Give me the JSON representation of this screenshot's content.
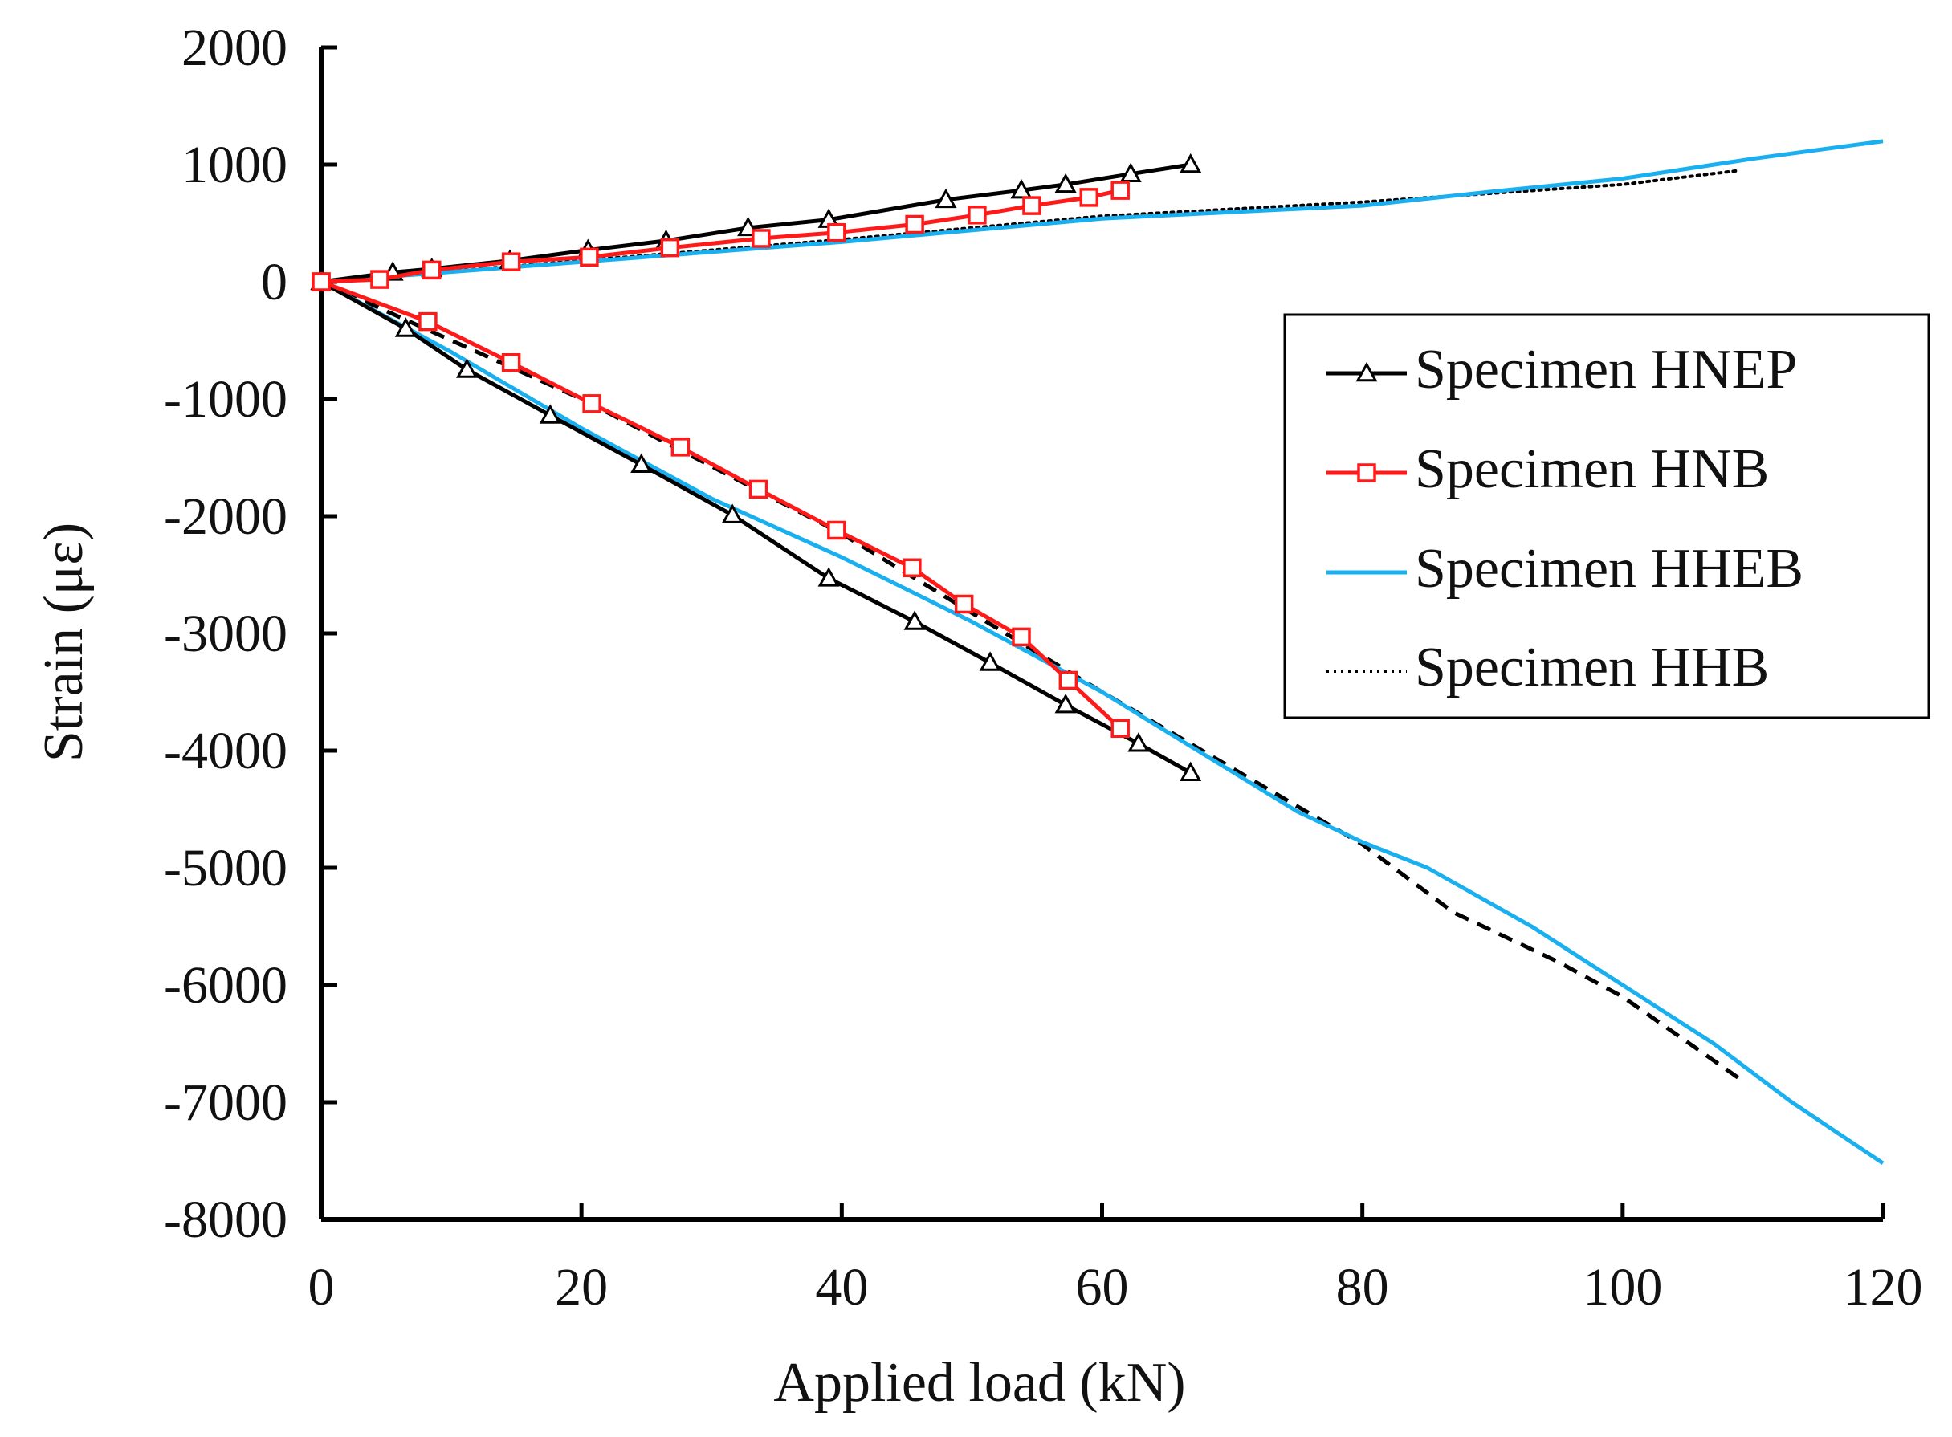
{
  "chart_data": {
    "type": "line",
    "title": "",
    "xlabel": "Applied load (kN)",
    "ylabel": "Strain (με)",
    "xlim": [
      0,
      120
    ],
    "ylim": [
      -8000,
      2000
    ],
    "xticks": [
      "0",
      "20",
      "40",
      "60",
      "80",
      "100",
      "120"
    ],
    "yticks": [
      "2000",
      "1000",
      "0",
      "-1000",
      "-2000",
      "-3000",
      "-4000",
      "-5000",
      "-6000",
      "-7000",
      "-8000"
    ],
    "xtick_values": [
      0,
      20,
      40,
      60,
      80,
      100,
      120
    ],
    "ytick_values": [
      2000,
      1000,
      0,
      -1000,
      -2000,
      -3000,
      -4000,
      -5000,
      -6000,
      -7000,
      -8000
    ],
    "grid": false,
    "legend_position": "right",
    "series": [
      {
        "name": "Specimen HNEP",
        "color": "#000000",
        "style": "solid",
        "marker": "triangle",
        "branches": [
          {
            "x": [
              0,
              5.5,
              8.5,
              14.5,
              20.5,
              26.5,
              32.8,
              39,
              48,
              53.8,
              57.2,
              62.2,
              66.8
            ],
            "y": [
              0,
              80,
              110,
              180,
              270,
              350,
              460,
              530,
              700,
              780,
              830,
              920,
              1000
            ]
          },
          {
            "x": [
              0,
              6.5,
              11.2,
              17.6,
              24.6,
              31.6,
              39,
              45.6,
              51.4,
              57.2,
              62.8,
              66.8
            ],
            "y": [
              0,
              -400,
              -750,
              -1140,
              -1560,
              -1990,
              -2530,
              -2900,
              -3250,
              -3610,
              -3940,
              -4190
            ]
          }
        ]
      },
      {
        "name": "Specimen HNB",
        "color": "#ff1a1a",
        "style": "solid",
        "marker": "square",
        "branches": [
          {
            "x": [
              0,
              4.5,
              8.5,
              14.6,
              20.6,
              26.8,
              33.8,
              39.6,
              45.6,
              50.4,
              54.6,
              59,
              61.4
            ],
            "y": [
              0,
              20,
              100,
              170,
              210,
              290,
              370,
              420,
              490,
              570,
              650,
              720,
              780
            ]
          },
          {
            "x": [
              0,
              8.2,
              14.6,
              20.8,
              27.6,
              33.6,
              39.6,
              45.4,
              49.4,
              53.8,
              57.4,
              61.4
            ],
            "y": [
              0,
              -340,
              -690,
              -1040,
              -1410,
              -1770,
              -2120,
              -2440,
              -2750,
              -3030,
              -3400,
              -3810
            ]
          }
        ]
      },
      {
        "name": "Specimen HHEB",
        "color": "#1ab0f0",
        "style": "solid",
        "marker": "none",
        "branches": [
          {
            "x": [
              0,
              20,
              40,
              60,
              80,
              90,
              100,
              110,
              120
            ],
            "y": [
              0,
              170,
              340,
              540,
              650,
              770,
              880,
              1050,
              1200
            ]
          },
          {
            "x": [
              0,
              10,
              20,
              30,
              40,
              50,
              60,
              70,
              75,
              80,
              85,
              93,
              100,
              107,
              113,
              120
            ],
            "y": [
              0,
              -600,
              -1250,
              -1850,
              -2350,
              -2900,
              -3500,
              -4180,
              -4520,
              -4780,
              -5000,
              -5500,
              -6000,
              -6500,
              -7000,
              -7520
            ]
          }
        ]
      },
      {
        "name": "Specimen HHB",
        "color": "#000000",
        "style": "dotted",
        "marker": "none",
        "branches": [
          {
            "x": [
              0,
              20,
              40,
              60,
              80,
              100,
              109
            ],
            "y": [
              0,
              180,
              360,
              560,
              680,
              830,
              950
            ]
          }
        ]
      },
      {
        "name": "",
        "color": "#000000",
        "style": "dashed",
        "marker": "none",
        "branches": [
          {
            "x": [
              0,
              20,
              40,
              60,
              70,
              80,
              87,
              95,
              100,
              109
            ],
            "y": [
              0,
              -1000,
              -2150,
              -3500,
              -4150,
              -4800,
              -5380,
              -5800,
              -6100,
              -6800
            ]
          }
        ]
      }
    ]
  }
}
